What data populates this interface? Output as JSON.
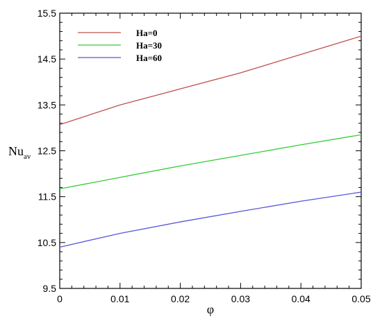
{
  "chart_data": {
    "type": "line",
    "title": "",
    "xlabel": "φ",
    "ylabel": {
      "main": "Nu",
      "subscript": "av"
    },
    "xlim": [
      0,
      0.05
    ],
    "ylim": [
      9.5,
      15.5
    ],
    "xticks": [
      0,
      0.01,
      0.02,
      0.03,
      0.04,
      0.05
    ],
    "xtick_labels": [
      "0",
      "0.01",
      "0.02",
      "0.03",
      "0.04",
      "0.05"
    ],
    "yticks": [
      9.5,
      10.5,
      11.5,
      12.5,
      13.5,
      14.5,
      15.5
    ],
    "ytick_labels": [
      "9.5",
      "10.5",
      "11.5",
      "12.5",
      "13.5",
      "14.5",
      "15.5"
    ],
    "grid": false,
    "legend_position": "top-left",
    "series": [
      {
        "name": "Ha=0",
        "color": "#c0504d",
        "x": [
          0,
          0.01,
          0.02,
          0.03,
          0.04,
          0.05
        ],
        "values": [
          13.07,
          13.5,
          13.85,
          14.2,
          14.6,
          15.0
        ]
      },
      {
        "name": "Ha=30",
        "color": "#33cc33",
        "x": [
          0,
          0.01,
          0.02,
          0.03,
          0.04,
          0.05
        ],
        "values": [
          11.67,
          11.92,
          12.17,
          12.4,
          12.63,
          12.85
        ]
      },
      {
        "name": "Ha=60",
        "color": "#5555dd",
        "x": [
          0,
          0.01,
          0.02,
          0.03,
          0.04,
          0.05
        ],
        "values": [
          10.4,
          10.7,
          10.95,
          11.18,
          11.4,
          11.6
        ]
      }
    ]
  }
}
